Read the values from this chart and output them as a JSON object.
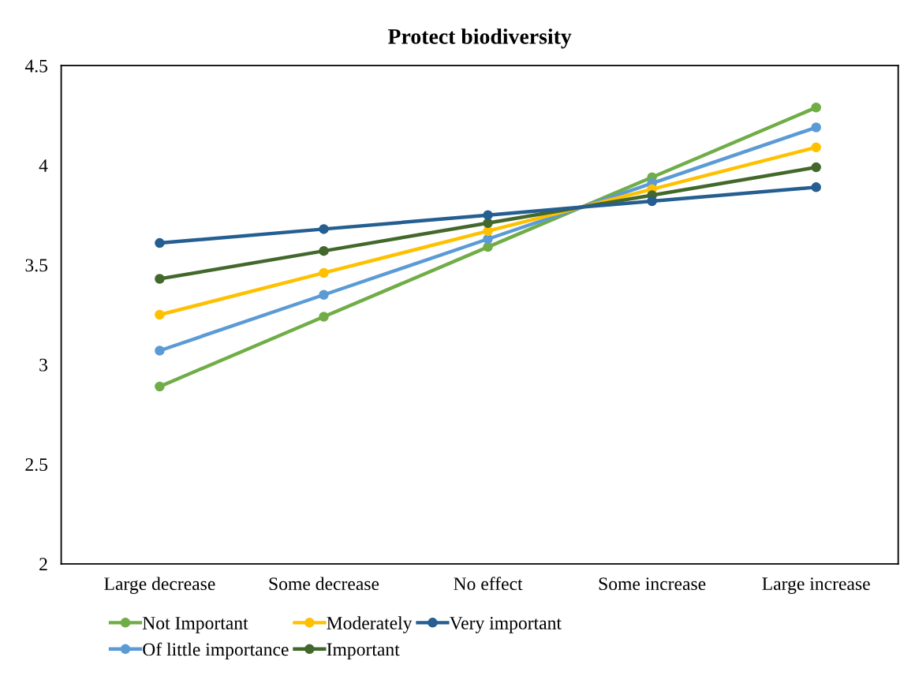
{
  "chart_data": {
    "type": "line",
    "title": "Protect biodiversity",
    "categories": [
      "Large decrease",
      "Some decrease",
      "No effect",
      "Some increase",
      "Large increase"
    ],
    "series": [
      {
        "name": "Not Important",
        "color": "#70ad47",
        "values": [
          2.89,
          3.24,
          3.59,
          3.94,
          4.29
        ]
      },
      {
        "name": "Of little importance",
        "color": "#5b9bd5",
        "values": [
          3.07,
          3.35,
          3.63,
          3.91,
          4.19
        ]
      },
      {
        "name": "Moderately",
        "color": "#ffc000",
        "values": [
          3.25,
          3.46,
          3.67,
          3.88,
          4.09
        ]
      },
      {
        "name": "Important",
        "color": "#43682b",
        "values": [
          3.43,
          3.57,
          3.71,
          3.85,
          3.99
        ]
      },
      {
        "name": "Very important",
        "color": "#255e91",
        "values": [
          3.61,
          3.68,
          3.75,
          3.82,
          3.89
        ]
      }
    ],
    "ylim": [
      2,
      4.5
    ],
    "yticks": [
      2,
      2.5,
      3,
      3.5,
      4,
      4.5
    ],
    "grid": false,
    "legend": "bottom",
    "marker": "circle",
    "line_style": "solid"
  }
}
